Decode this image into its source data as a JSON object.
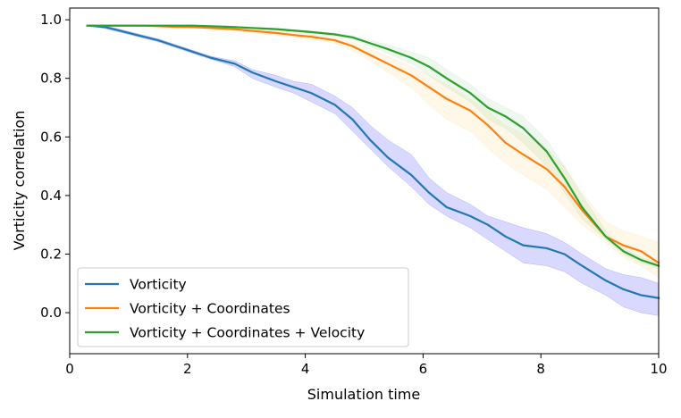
{
  "chart_data": {
    "type": "line",
    "title": "",
    "xlabel": "Simulation time",
    "ylabel": "Vorticity correlation",
    "xlim": [
      0,
      10
    ],
    "ylim": [
      -0.14,
      1.04
    ],
    "xticks": [
      0,
      2,
      4,
      6,
      8,
      10
    ],
    "xtick_labels": [
      "0",
      "2",
      "4",
      "6",
      "8",
      "10"
    ],
    "yticks": [
      0.0,
      0.2,
      0.4,
      0.6,
      0.8,
      1.0
    ],
    "ytick_labels": [
      "0.0",
      "0.2",
      "0.4",
      "0.6",
      "0.8",
      "1.0"
    ],
    "grid": false,
    "legend_position": "lower-left",
    "x": [
      0.3,
      0.6,
      0.9,
      1.2,
      1.5,
      1.8,
      2.1,
      2.4,
      2.8,
      3.1,
      3.5,
      3.8,
      4.1,
      4.5,
      4.8,
      5.1,
      5.4,
      5.8,
      6.1,
      6.4,
      6.8,
      7.1,
      7.4,
      7.7,
      8.1,
      8.4,
      8.7,
      9.1,
      9.4,
      9.7,
      10.0
    ],
    "series": [
      {
        "name": "Vorticity",
        "color": "#1f77b4",
        "band_color": "#0000ff",
        "values": [
          0.98,
          0.975,
          0.96,
          0.945,
          0.93,
          0.91,
          0.89,
          0.87,
          0.85,
          0.82,
          0.79,
          0.77,
          0.75,
          0.71,
          0.66,
          0.59,
          0.53,
          0.47,
          0.41,
          0.36,
          0.33,
          0.3,
          0.26,
          0.23,
          0.22,
          0.2,
          0.16,
          0.11,
          0.08,
          0.06,
          0.05
        ],
        "lower": [
          0.98,
          0.97,
          0.955,
          0.94,
          0.925,
          0.905,
          0.885,
          0.865,
          0.84,
          0.8,
          0.77,
          0.75,
          0.72,
          0.68,
          0.62,
          0.56,
          0.5,
          0.43,
          0.37,
          0.33,
          0.29,
          0.25,
          0.21,
          0.17,
          0.16,
          0.14,
          0.1,
          0.06,
          0.02,
          0.0,
          -0.01
        ],
        "upper": [
          0.98,
          0.98,
          0.965,
          0.95,
          0.935,
          0.915,
          0.895,
          0.875,
          0.86,
          0.83,
          0.81,
          0.79,
          0.78,
          0.74,
          0.7,
          0.64,
          0.59,
          0.54,
          0.46,
          0.41,
          0.37,
          0.33,
          0.31,
          0.29,
          0.27,
          0.24,
          0.2,
          0.15,
          0.13,
          0.12,
          0.1
        ]
      },
      {
        "name": "Vorticity + Coordinates",
        "color": "#ff7f0e",
        "band_color": "#ffcc66",
        "values": [
          0.98,
          0.98,
          0.98,
          0.98,
          0.978,
          0.976,
          0.975,
          0.972,
          0.968,
          0.962,
          0.955,
          0.948,
          0.942,
          0.93,
          0.91,
          0.88,
          0.85,
          0.81,
          0.77,
          0.73,
          0.69,
          0.64,
          0.58,
          0.54,
          0.49,
          0.43,
          0.35,
          0.26,
          0.23,
          0.21,
          0.17
        ],
        "lower": [
          0.98,
          0.98,
          0.98,
          0.98,
          0.976,
          0.974,
          0.972,
          0.968,
          0.962,
          0.955,
          0.947,
          0.94,
          0.933,
          0.92,
          0.895,
          0.86,
          0.82,
          0.77,
          0.71,
          0.66,
          0.62,
          0.56,
          0.51,
          0.47,
          0.42,
          0.36,
          0.3,
          0.24,
          0.19,
          0.16,
          0.12
        ],
        "upper": [
          0.98,
          0.98,
          0.98,
          0.98,
          0.98,
          0.978,
          0.978,
          0.976,
          0.974,
          0.969,
          0.963,
          0.956,
          0.951,
          0.94,
          0.925,
          0.9,
          0.875,
          0.84,
          0.81,
          0.78,
          0.73,
          0.69,
          0.64,
          0.61,
          0.56,
          0.5,
          0.41,
          0.31,
          0.28,
          0.26,
          0.24
        ]
      },
      {
        "name": "Vorticity + Coordinates + Velocity",
        "color": "#2ca02c",
        "band_color": "#8fd18f",
        "values": [
          0.98,
          0.98,
          0.98,
          0.98,
          0.98,
          0.98,
          0.98,
          0.978,
          0.975,
          0.972,
          0.968,
          0.963,
          0.958,
          0.95,
          0.94,
          0.92,
          0.9,
          0.87,
          0.84,
          0.8,
          0.75,
          0.7,
          0.67,
          0.63,
          0.55,
          0.46,
          0.36,
          0.26,
          0.21,
          0.18,
          0.16
        ],
        "lower": [
          0.98,
          0.98,
          0.98,
          0.98,
          0.979,
          0.979,
          0.978,
          0.976,
          0.972,
          0.969,
          0.965,
          0.959,
          0.954,
          0.945,
          0.934,
          0.91,
          0.885,
          0.85,
          0.81,
          0.77,
          0.72,
          0.66,
          0.63,
          0.58,
          0.5,
          0.41,
          0.32,
          0.25,
          0.2,
          0.17,
          0.15
        ],
        "upper": [
          0.98,
          0.98,
          0.98,
          0.98,
          0.981,
          0.981,
          0.982,
          0.98,
          0.978,
          0.975,
          0.971,
          0.967,
          0.962,
          0.955,
          0.946,
          0.93,
          0.915,
          0.89,
          0.87,
          0.83,
          0.78,
          0.73,
          0.7,
          0.67,
          0.59,
          0.5,
          0.4,
          0.28,
          0.22,
          0.19,
          0.17
        ]
      }
    ]
  }
}
